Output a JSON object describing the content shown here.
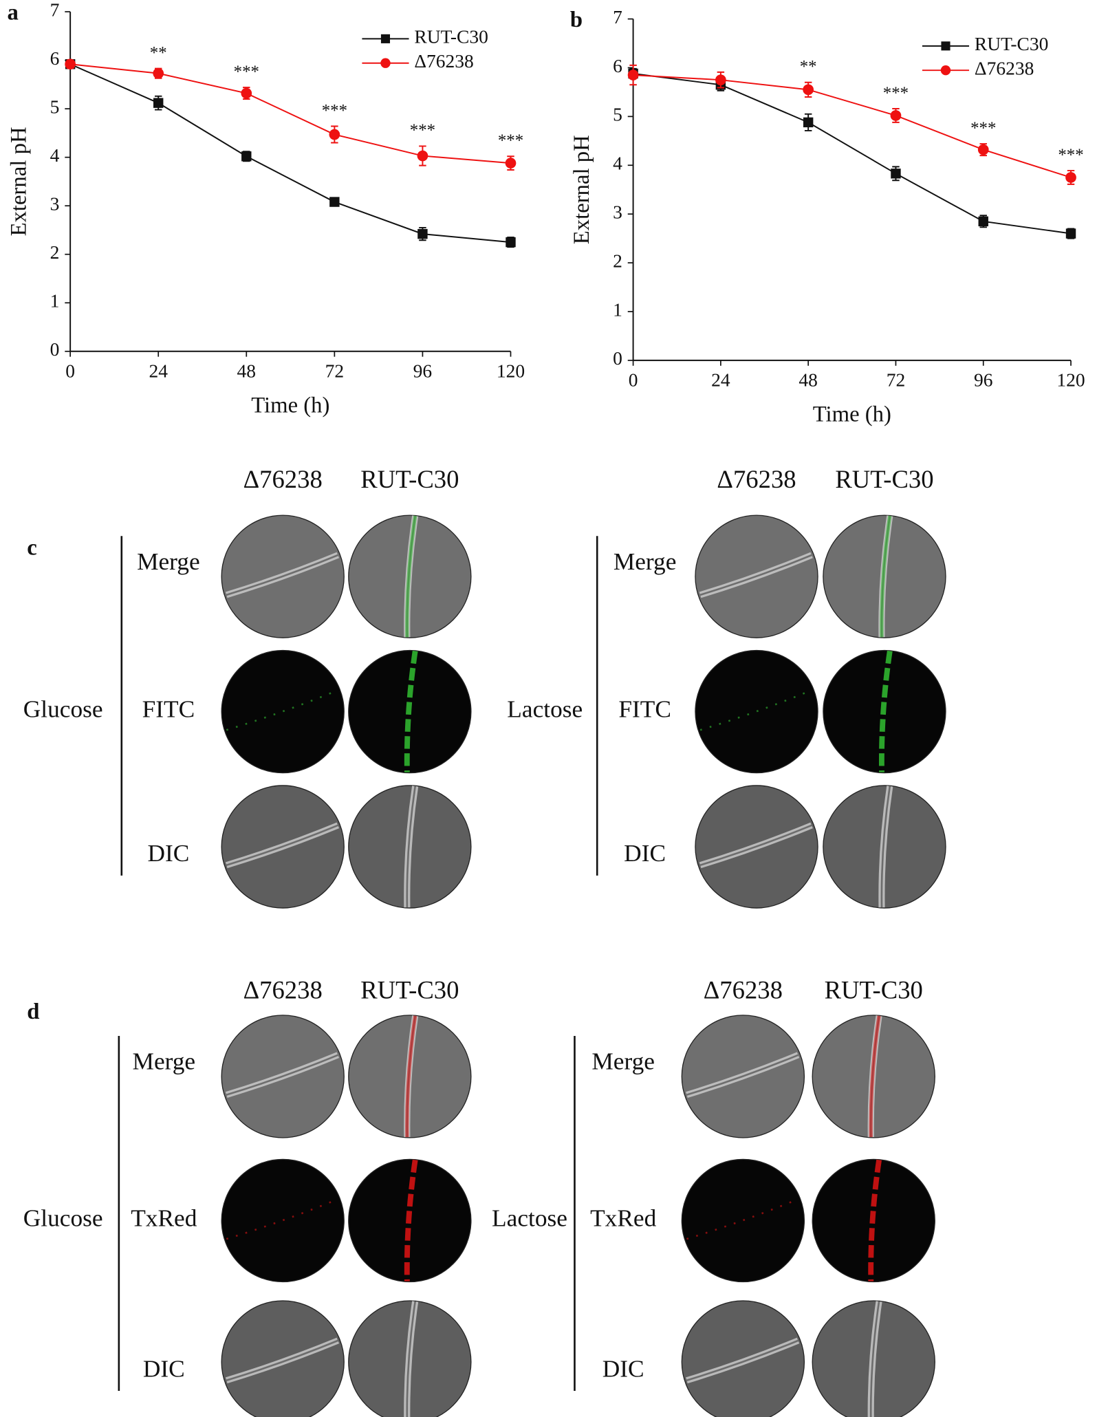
{
  "chart_data": [
    {
      "type": "line",
      "panel_label": "a",
      "xlabel": "Time (h)",
      "ylabel": "External pH",
      "x": [
        0,
        24,
        48,
        72,
        96,
        120
      ],
      "xlim": [
        0,
        120
      ],
      "xticks": [
        0,
        24,
        48,
        72,
        96,
        120
      ],
      "ylim": [
        0,
        7
      ],
      "yticks": [
        0,
        1,
        2,
        3,
        4,
        5,
        6,
        7
      ],
      "legend": "upper right",
      "series": [
        {
          "name": "RUT-C30",
          "color": "#111111",
          "marker": "square",
          "values": [
            5.92,
            5.12,
            4.02,
            3.08,
            2.42,
            2.25
          ],
          "errors": [
            0.08,
            0.14,
            0.1,
            0.08,
            0.13,
            0.1
          ]
        },
        {
          "name": "Δ76238",
          "color": "#ee1111",
          "marker": "circle",
          "values": [
            5.92,
            5.73,
            5.32,
            4.47,
            4.03,
            3.88
          ],
          "errors": [
            0.08,
            0.1,
            0.12,
            0.17,
            0.2,
            0.14
          ]
        }
      ],
      "annotations": [
        {
          "x": 24,
          "text": "**"
        },
        {
          "x": 48,
          "text": "***"
        },
        {
          "x": 72,
          "text": "***"
        },
        {
          "x": 96,
          "text": "***"
        },
        {
          "x": 120,
          "text": "***"
        }
      ]
    },
    {
      "type": "line",
      "panel_label": "b",
      "xlabel": "Time (h)",
      "ylabel": "External pH",
      "x": [
        0,
        24,
        48,
        72,
        96,
        120
      ],
      "xlim": [
        0,
        120
      ],
      "xticks": [
        0,
        24,
        48,
        72,
        96,
        120
      ],
      "ylim": [
        0,
        7
      ],
      "yticks": [
        0,
        1,
        2,
        3,
        4,
        5,
        6,
        7
      ],
      "legend": "upper right",
      "series": [
        {
          "name": "RUT-C30",
          "color": "#111111",
          "marker": "square",
          "values": [
            5.88,
            5.65,
            4.88,
            3.83,
            2.85,
            2.6
          ],
          "errors": [
            0.1,
            0.12,
            0.17,
            0.14,
            0.12,
            0.1
          ]
        },
        {
          "name": "Δ76238",
          "color": "#ee1111",
          "marker": "circle",
          "values": [
            5.85,
            5.75,
            5.55,
            5.02,
            4.32,
            3.75
          ],
          "errors": [
            0.2,
            0.16,
            0.15,
            0.14,
            0.12,
            0.14
          ]
        }
      ],
      "annotations": [
        {
          "x": 48,
          "text": "**"
        },
        {
          "x": 72,
          "text": "***"
        },
        {
          "x": 96,
          "text": "***"
        },
        {
          "x": 120,
          "text": "***"
        }
      ]
    }
  ],
  "panels": [
    {
      "label": "c",
      "color": "#33c033",
      "groups": [
        {
          "name": "Glucose",
          "columns": [
            "Δ76238",
            "RUT-C30"
          ],
          "rows": [
            "Merge",
            "FITC",
            "DIC"
          ]
        },
        {
          "name": "Lactose",
          "columns": [
            "Δ76238",
            "RUT-C30"
          ],
          "rows": [
            "Merge",
            "FITC",
            "DIC"
          ]
        }
      ]
    },
    {
      "label": "d",
      "color": "#e01414",
      "groups": [
        {
          "name": "Glucose",
          "columns": [
            "Δ76238",
            "RUT-C30"
          ],
          "rows": [
            "Merge",
            "TxRed",
            "DIC"
          ]
        },
        {
          "name": "Lactose",
          "columns": [
            "Δ76238",
            "RUT-C30"
          ],
          "rows": [
            "Merge",
            "TxRed",
            "DIC"
          ]
        }
      ]
    }
  ]
}
